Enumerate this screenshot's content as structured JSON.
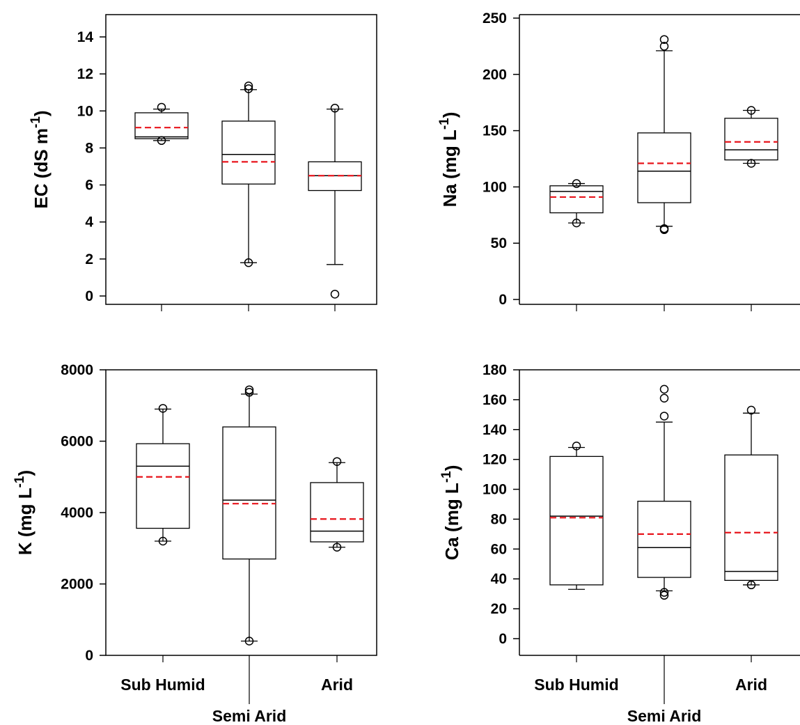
{
  "chart_data": [
    {
      "type": "box",
      "ylabel": "EC (dS m",
      "ylabel_sup": "-1",
      "ylabel_close": ")",
      "ylim": [
        0,
        14
      ],
      "yticks": [
        0,
        2,
        4,
        6,
        8,
        10,
        12,
        14
      ],
      "categories": [
        "Sub Humid",
        "Semi Arid",
        "Arid"
      ],
      "show_category_labels": false,
      "boxes": [
        {
          "category": "Sub Humid",
          "whisker_low": 8.4,
          "q1": 8.5,
          "median": 8.6,
          "q3": 9.9,
          "whisker_high": 10.1,
          "mean": 9.1,
          "outliers": [
            10.2,
            8.4
          ]
        },
        {
          "category": "Semi Arid",
          "whisker_low": 1.8,
          "q1": 6.05,
          "median": 7.65,
          "q3": 9.45,
          "whisker_high": 11.15,
          "mean": 7.25,
          "outliers": [
            11.35,
            11.2,
            1.8
          ]
        },
        {
          "category": "Arid",
          "whisker_low": 1.7,
          "q1": 5.7,
          "median": 6.5,
          "q3": 7.25,
          "whisker_high": 10.1,
          "mean": 6.5,
          "outliers": [
            10.15,
            0.1
          ]
        }
      ]
    },
    {
      "type": "box",
      "ylabel": "Na (mg L",
      "ylabel_sup": "-1",
      "ylabel_close": ")",
      "ylim": [
        0,
        250
      ],
      "yticks": [
        0,
        50,
        100,
        150,
        200,
        250
      ],
      "categories": [
        "Sub Humid",
        "Semi Arid",
        "Arid"
      ],
      "show_category_labels": false,
      "boxes": [
        {
          "category": "Sub Humid",
          "whisker_low": 68,
          "q1": 77,
          "median": 96,
          "q3": 101,
          "whisker_high": 103,
          "mean": 91,
          "outliers": [
            103,
            68
          ]
        },
        {
          "category": "Semi Arid",
          "whisker_low": 65,
          "q1": 86,
          "median": 114,
          "q3": 148,
          "whisker_high": 221,
          "mean": 121,
          "outliers": [
            231,
            225,
            63,
            62
          ]
        },
        {
          "category": "Arid",
          "whisker_low": 121,
          "q1": 124,
          "median": 133,
          "q3": 161,
          "whisker_high": 168,
          "mean": 140,
          "outliers": [
            168,
            121
          ]
        }
      ]
    },
    {
      "type": "box",
      "ylabel": "K (mg L",
      "ylabel_sup": "-1",
      "ylabel_close": ")",
      "ylim": [
        0,
        8000
      ],
      "yticks": [
        0,
        2000,
        4000,
        6000,
        8000
      ],
      "categories": [
        "Sub Humid",
        "Semi Arid",
        "Arid"
      ],
      "show_category_labels": true,
      "boxes": [
        {
          "category": "Sub Humid",
          "whisker_low": 3200,
          "q1": 3560,
          "median": 5300,
          "q3": 5930,
          "whisker_high": 6900,
          "mean": 5000,
          "outliers": [
            6920,
            3200
          ]
        },
        {
          "category": "Semi Arid",
          "whisker_low": 400,
          "q1": 2700,
          "median": 4350,
          "q3": 6400,
          "whisker_high": 7320,
          "mean": 4250,
          "outliers": [
            7440,
            7370,
            400
          ]
        },
        {
          "category": "Arid",
          "whisker_low": 3030,
          "q1": 3180,
          "median": 3480,
          "q3": 4840,
          "whisker_high": 5400,
          "mean": 3820,
          "outliers": [
            5430,
            3030
          ]
        }
      ]
    },
    {
      "type": "box",
      "ylabel": "Ca (mg L",
      "ylabel_sup": "-1",
      "ylabel_close": ")",
      "ylim": [
        0,
        180
      ],
      "yticks": [
        0,
        20,
        40,
        60,
        80,
        100,
        120,
        140,
        160,
        180
      ],
      "categories": [
        "Sub Humid",
        "Semi Arid",
        "Arid"
      ],
      "show_category_labels": true,
      "boxes": [
        {
          "category": "Sub Humid",
          "whisker_low": 33,
          "q1": 36,
          "median": 82,
          "q3": 122,
          "whisker_high": 128,
          "mean": 81,
          "outliers": [
            129
          ]
        },
        {
          "category": "Semi Arid",
          "whisker_low": 32,
          "q1": 41,
          "median": 61,
          "q3": 92,
          "whisker_high": 145,
          "mean": 70,
          "outliers": [
            167,
            161,
            149,
            31,
            29
          ]
        },
        {
          "category": "Arid",
          "whisker_low": 36,
          "q1": 39,
          "median": 45,
          "q3": 123,
          "whisker_high": 151,
          "mean": 71,
          "outliers": [
            153,
            36
          ]
        }
      ]
    }
  ],
  "colors": {
    "mean_line": "#e8141b",
    "median_line": "#000000",
    "axis": "#000000"
  }
}
